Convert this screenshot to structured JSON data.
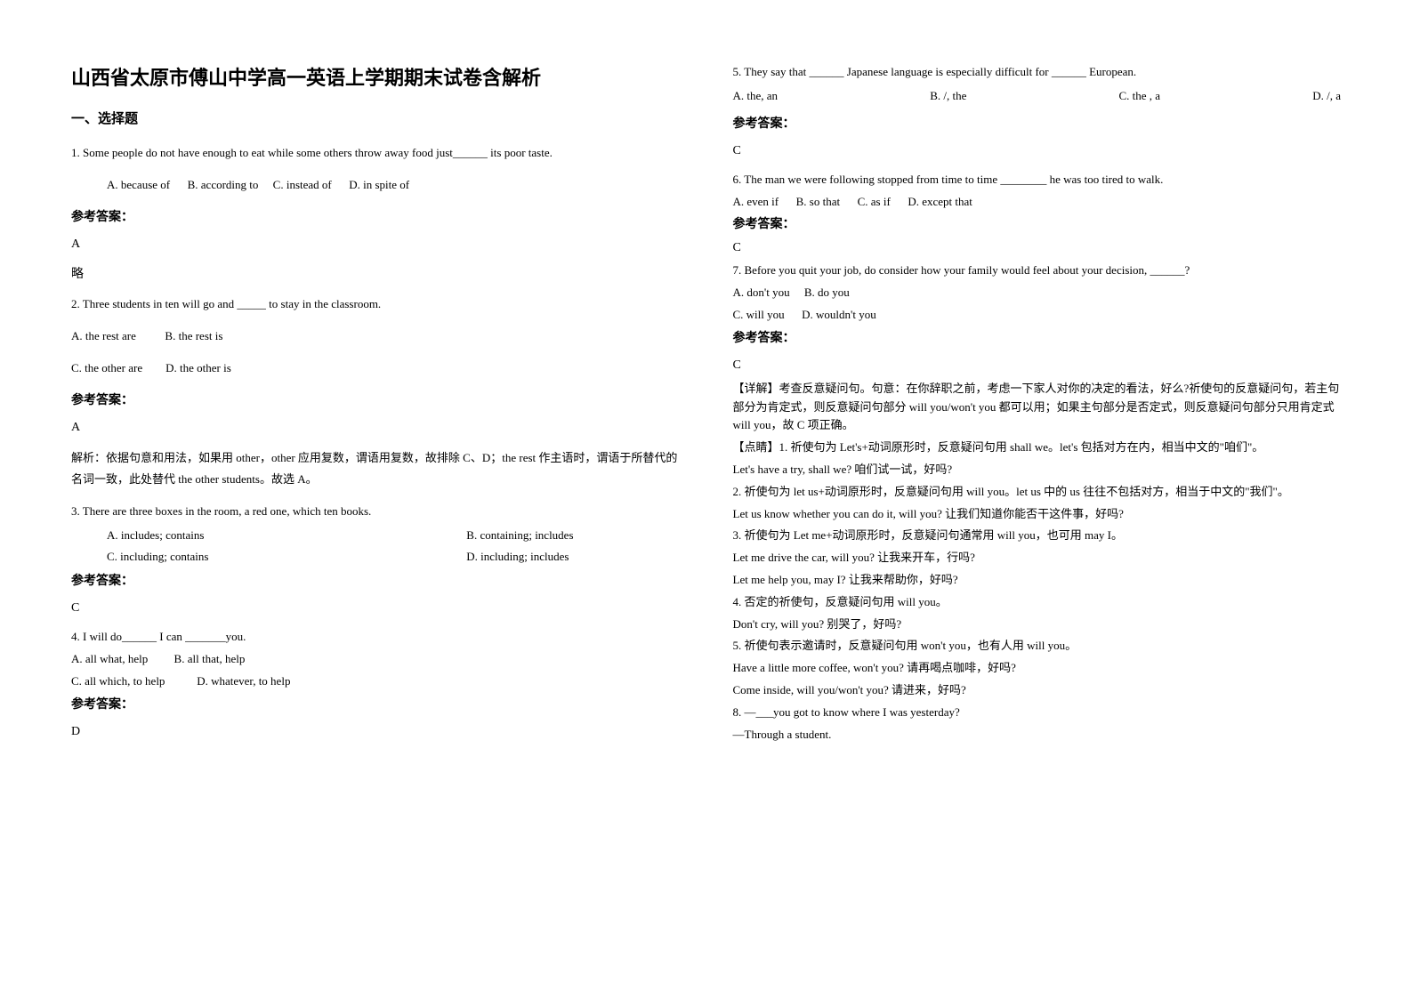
{
  "title": "山西省太原市傅山中学高一英语上学期期末试卷含解析",
  "sectionHeading": "一、选择题",
  "q1": {
    "text": "1. Some people do not have enough to eat while some others throw away food just______ its poor taste.",
    "optA": "A. because of",
    "optB": "B. according to",
    "optC": "C. instead of",
    "optD": "D. in spite of",
    "answerLabel": "参考答案：",
    "answer": "A",
    "note": "略"
  },
  "q2": {
    "text": "2. Three students in ten will go and _____ to stay in the classroom.",
    "optA": "A. the rest are",
    "optB": "B. the rest is",
    "optC": "C. the other are",
    "optD": "D. the other is",
    "answerLabel": "参考答案：",
    "answer": "A",
    "explain": "解析：依据句意和用法，如果用 other，other 应用复数，谓语用复数，故排除 C、D；the rest 作主语时，谓语于所替代的名词一致，此处替代 the other students。故选 A。"
  },
  "q3": {
    "text": "3. There are three boxes in the room,   a red one, which   ten books.",
    "optA": "A. includes; contains",
    "optB": "B. containing; includes",
    "optC": "C. including; contains",
    "optD": "D. including; includes",
    "answerLabel": "参考答案：",
    "answer": "C"
  },
  "q4": {
    "text": "4. I will do______ I can _______you.",
    "optA": "A. all what, help",
    "optB": "B. all that, help",
    "optC": "C. all which, to help",
    "optD": "D. whatever, to help",
    "answerLabel": "参考答案：",
    "answer": "D"
  },
  "q5": {
    "text": "5. They say that ______ Japanese language is especially difficult for ______ European.",
    "optA": "A. the, an",
    "optB": "B. /,  the",
    "optC": "C. the ,  a",
    "optD": "D. /, a",
    "answerLabel": "参考答案：",
    "answer": "C"
  },
  "q6": {
    "text": "6. The man we were following stopped from time to time ________ he was too tired to walk.",
    "optA": "A. even if",
    "optB": "B. so that",
    "optC": "C. as if",
    "optD": "D. except that",
    "answerLabel": "参考答案：",
    "answer": "C"
  },
  "q7": {
    "text": "7. Before you quit your job, do consider how your family would feel about your decision, ______?",
    "optA": "A. don't you",
    "optB": "B. do you",
    "optC": "C. will you",
    "optD": "D. wouldn't you",
    "answerLabel": "参考答案：",
    "answer": "C",
    "explain1": "【详解】考查反意疑问句。句意：在你辞职之前，考虑一下家人对你的决定的看法，好么?祈使句的反意疑问句，若主句部分为肯定式，则反意疑问句部分 will you/won't you 都可以用；如果主句部分是否定式，则反意疑问句部分只用肯定式 will you，故 C 项正确。",
    "explain2": "【点睛】1. 祈使句为 Let's+动词原形时，反意疑问句用 shall we。let's 包括对方在内，相当中文的\"咱们\"。",
    "line1": "Let's have a try, shall we? 咱们试一试，好吗?",
    "line2": "2. 祈使句为 let us+动词原形时，反意疑问句用 will you。let us 中的 us 往往不包括对方，相当于中文的\"我们\"。",
    "line3": "Let us know whether you can do it, will you? 让我们知道你能否干这件事，好吗?",
    "line4": "3. 祈使句为 Let me+动词原形时，反意疑问句通常用 will you，也可用 may I。",
    "line5": "Let me drive the car, will you? 让我来开车，行吗?",
    "line6": "Let me help you, may I? 让我来帮助你，好吗?",
    "line7": "4. 否定的祈使句，反意疑问句用 will you。",
    "line8": "Don't cry, will you? 别哭了，好吗?",
    "line9": "5. 祈使句表示邀请时，反意疑问句用 won't you，也有人用 will you。",
    "line10": "Have a little more coffee, won't you? 请再喝点咖啡，好吗?",
    "line11": "Come inside, will you/won't you? 请进来，好吗?"
  },
  "q8": {
    "text1": "8. —___you got to know where I was yesterday?",
    "text2": "—Through a student."
  }
}
